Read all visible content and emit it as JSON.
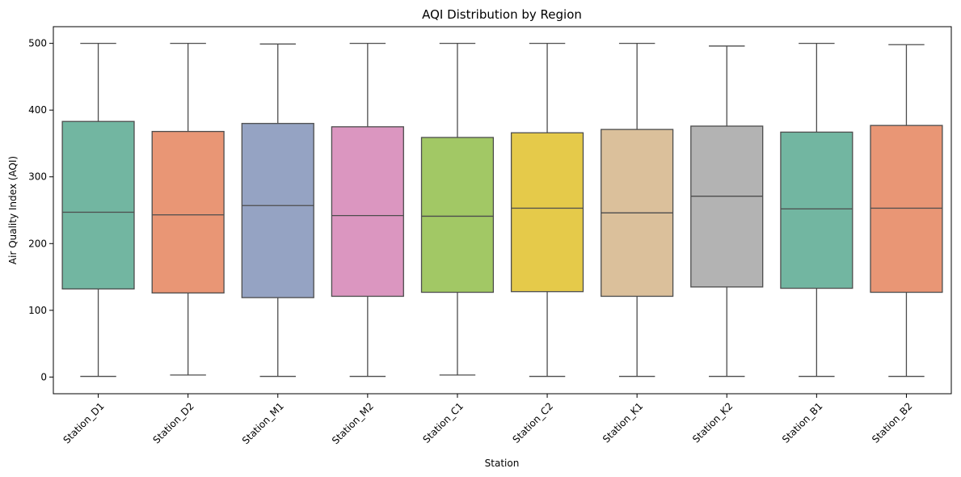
{
  "chart_data": {
    "type": "box",
    "title": "AQI Distribution by Region",
    "xlabel": "Station",
    "ylabel": "Air Quality Index (AQI)",
    "ylim": [
      -25,
      525
    ],
    "yticks": [
      0,
      100,
      200,
      300,
      400,
      500
    ],
    "grid": false,
    "legend": "none",
    "categories": [
      "Station_D1",
      "Station_D2",
      "Station_M1",
      "Station_M2",
      "Station_C1",
      "Station_C2",
      "Station_K1",
      "Station_K2",
      "Station_B1",
      "Station_B2"
    ],
    "boxes": [
      {
        "min": 1,
        "q1": 132,
        "median": 247,
        "q3": 383,
        "max": 500
      },
      {
        "min": 3,
        "q1": 126,
        "median": 243,
        "q3": 368,
        "max": 500
      },
      {
        "min": 1,
        "q1": 119,
        "median": 257,
        "q3": 380,
        "max": 499
      },
      {
        "min": 1,
        "q1": 121,
        "median": 242,
        "q3": 375,
        "max": 500
      },
      {
        "min": 3,
        "q1": 127,
        "median": 241,
        "q3": 359,
        "max": 500
      },
      {
        "min": 1,
        "q1": 128,
        "median": 253,
        "q3": 366,
        "max": 500
      },
      {
        "min": 1,
        "q1": 121,
        "median": 246,
        "q3": 371,
        "max": 500
      },
      {
        "min": 1,
        "q1": 135,
        "median": 271,
        "q3": 376,
        "max": 496
      },
      {
        "min": 1,
        "q1": 133,
        "median": 252,
        "q3": 367,
        "max": 500
      },
      {
        "min": 1,
        "q1": 127,
        "median": 253,
        "q3": 377,
        "max": 498
      }
    ],
    "colors": [
      "#72b6a1",
      "#e99675",
      "#95a3c3",
      "#db96c0",
      "#a2c865",
      "#e5ca4a",
      "#dbc09b",
      "#b3b3b3",
      "#72b6a1",
      "#e99675"
    ],
    "line_color": "#4d4d4d"
  }
}
